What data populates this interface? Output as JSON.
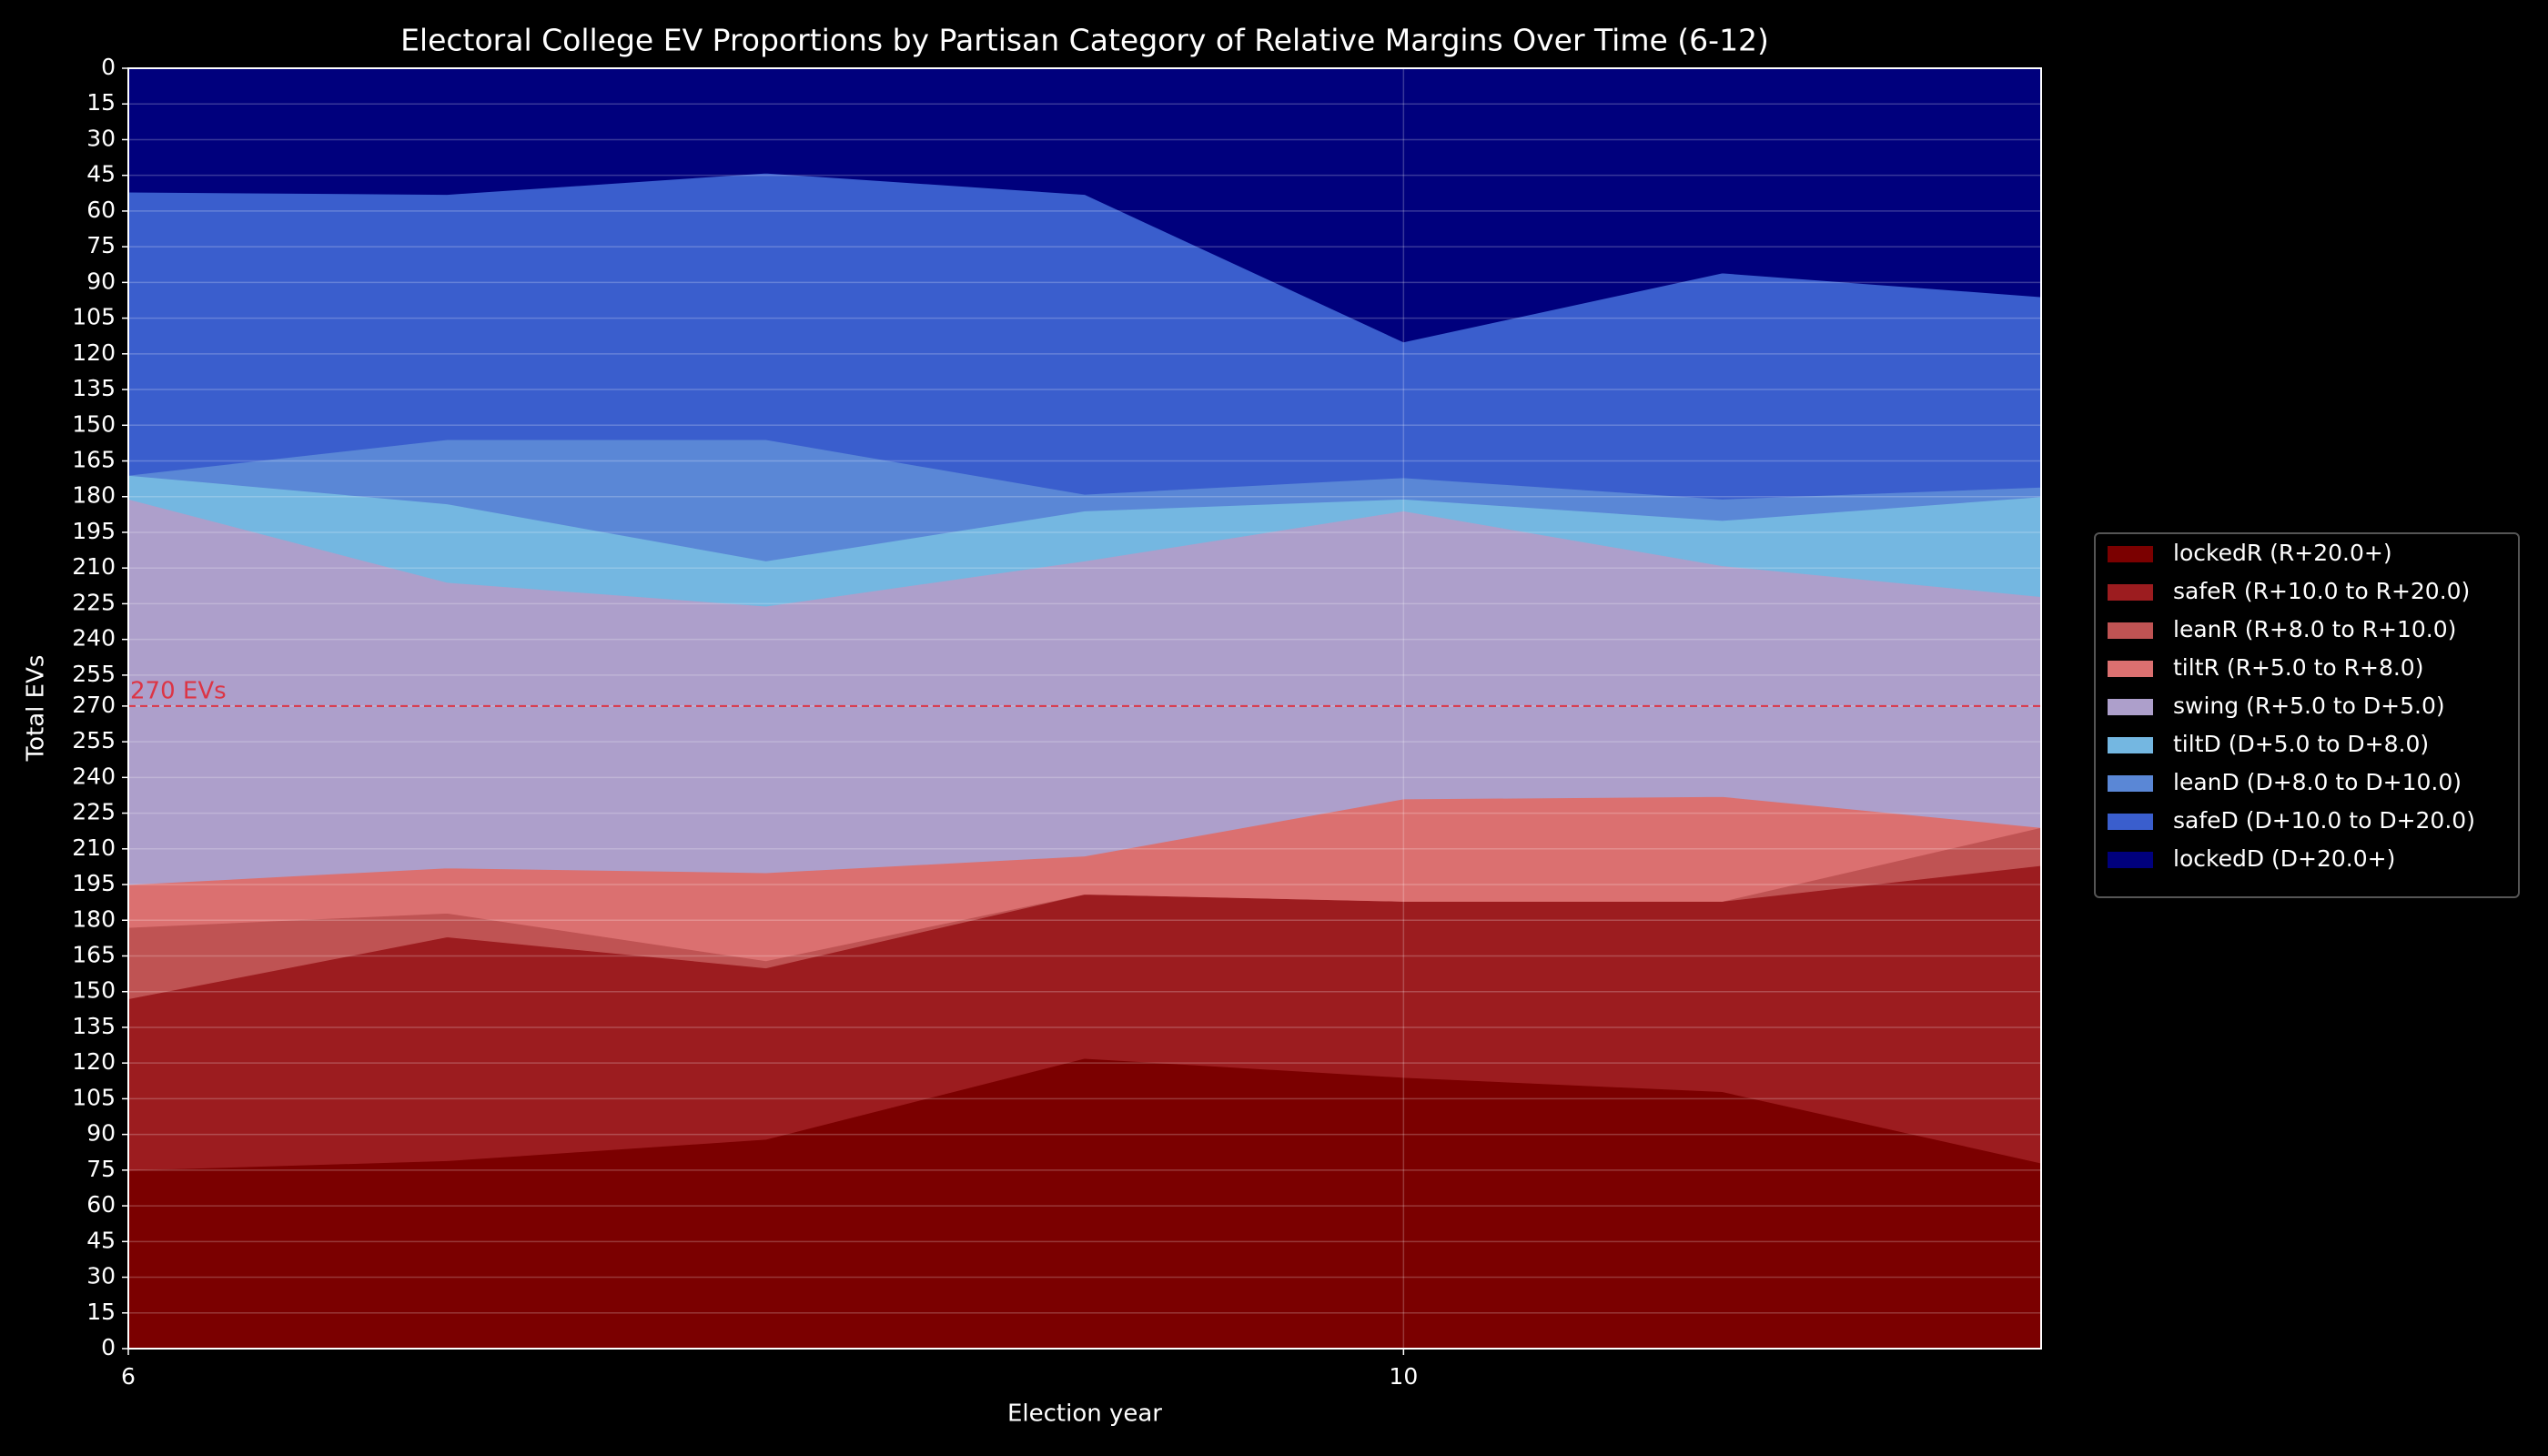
{
  "chart_data": {
    "type": "stacked_area",
    "title": "Electoral College EV Proportions by Partisan Category of Relative Margins Over Time (6-12)",
    "xlabel": "Election year",
    "ylabel": "Total EVs",
    "x": [
      6,
      7,
      8,
      9,
      10,
      11,
      12
    ],
    "xlim": [
      6,
      12
    ],
    "xticks": [
      6,
      10
    ],
    "ylim": [
      0,
      538
    ],
    "yticks": [
      0,
      15,
      30,
      45,
      60,
      75,
      90,
      105,
      120,
      135,
      150,
      165,
      180,
      195,
      210,
      225,
      240,
      255,
      270,
      {
        "value": 283,
        "label": "255"
      },
      {
        "value": 298,
        "label": "240"
      },
      {
        "value": 313,
        "label": "225"
      },
      {
        "value": 328,
        "label": "210"
      },
      {
        "value": 343,
        "label": "195"
      },
      {
        "value": 358,
        "label": "180"
      },
      {
        "value": 373,
        "label": "165"
      },
      {
        "value": 388,
        "label": "150"
      },
      {
        "value": 403,
        "label": "135"
      },
      {
        "value": 418,
        "label": "120"
      },
      {
        "value": 433,
        "label": "105"
      },
      {
        "value": 448,
        "label": "90"
      },
      {
        "value": 463,
        "label": "75"
      },
      {
        "value": 478,
        "label": "60"
      },
      {
        "value": 493,
        "label": "45"
      },
      {
        "value": 508,
        "label": "30"
      },
      {
        "value": 523,
        "label": "15"
      },
      {
        "value": 538,
        "label": "0"
      }
    ],
    "grid": true,
    "legend": "right",
    "reference_line": {
      "value": 270,
      "label": "270 EVs",
      "color": "#dc3545"
    },
    "series": [
      {
        "name": "lockedR (R+20.0+)",
        "color": "#7b0000",
        "values": [
          75,
          79,
          88,
          122,
          114,
          108,
          78
        ]
      },
      {
        "name": "safeR (R+10.0 to R+20.0)",
        "color": "#9c1c1f",
        "values": [
          72,
          94,
          72,
          69,
          74,
          80,
          125
        ]
      },
      {
        "name": "leanR (R+8.0 to R+10.0)",
        "color": "#bf5353",
        "values": [
          30,
          10,
          3,
          0,
          0,
          0,
          16
        ]
      },
      {
        "name": "tiltR (R+5.0 to R+8.0)",
        "color": "#db7070",
        "values": [
          18,
          19,
          37,
          16,
          43,
          44,
          0
        ]
      },
      {
        "name": "swing (R+5.0 to D+5.0)",
        "color": "#ad9fcb",
        "values": [
          162,
          120,
          112,
          124,
          121,
          97,
          97
        ]
      },
      {
        "name": "tiltD (D+5.0 to D+8.0)",
        "color": "#74b7e1",
        "values": [
          10,
          33,
          19,
          21,
          5,
          19,
          42
        ]
      },
      {
        "name": "leanD (D+8.0 to D+10.0)",
        "color": "#5a87d6",
        "values": [
          0,
          27,
          51,
          7,
          9,
          9,
          4
        ]
      },
      {
        "name": "safeD (D+10.0 to D+20.0)",
        "color": "#3a5ecd",
        "values": [
          119,
          103,
          112,
          126,
          57,
          95,
          80
        ]
      },
      {
        "name": "lockedD (D+20.0+)",
        "color": "#00007d",
        "values": [
          52,
          53,
          44,
          53,
          115,
          86,
          96
        ]
      }
    ]
  }
}
